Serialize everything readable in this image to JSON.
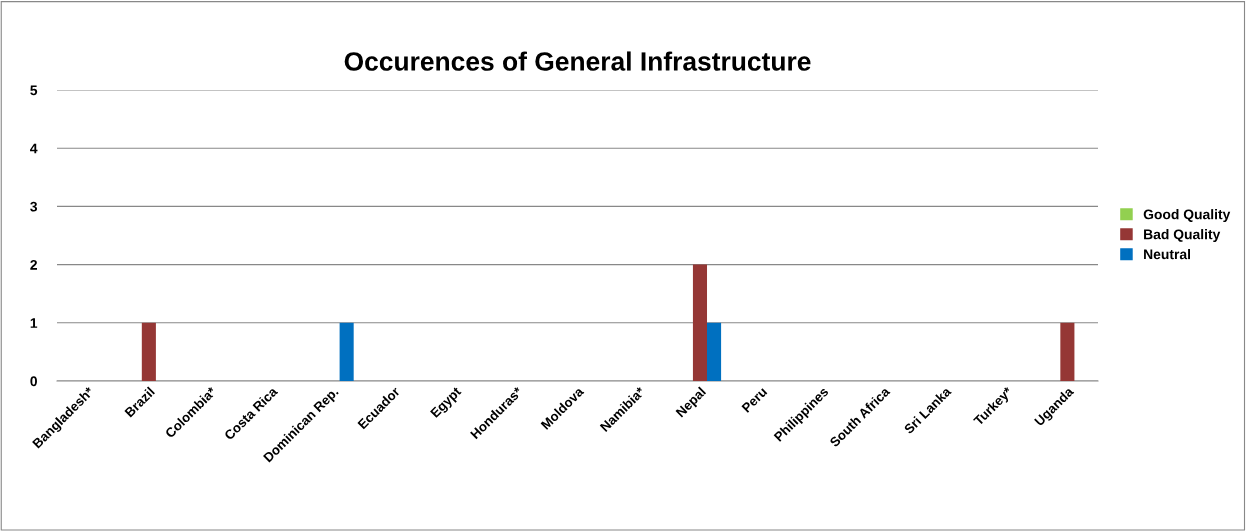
{
  "chart_data": {
    "type": "bar",
    "title": "Occurences of General Infrastructure",
    "categories": [
      "Bangladesh*",
      "Brazil",
      "Colombia*",
      "Costa Rica",
      "Dominican Rep.",
      "Ecuador",
      "Egypt",
      "Honduras*",
      "Moldova",
      "Namibia*",
      "Nepal",
      "Peru",
      "Philippines",
      "South Africa",
      "Sri Lanka",
      "Turkey*",
      "Uganda"
    ],
    "series": [
      {
        "name": "Good Quality",
        "color": "#92d050",
        "values": [
          0,
          0,
          0,
          0,
          0,
          0,
          0,
          0,
          0,
          0,
          0,
          0,
          0,
          0,
          0,
          0,
          0
        ]
      },
      {
        "name": "Bad Quality",
        "color": "#953735",
        "values": [
          0,
          1,
          0,
          0,
          0,
          0,
          0,
          0,
          0,
          0,
          2,
          0,
          0,
          0,
          0,
          0,
          1
        ]
      },
      {
        "name": "Neutral",
        "color": "#0070c0",
        "values": [
          0,
          0,
          0,
          0,
          1,
          0,
          0,
          0,
          0,
          0,
          1,
          0,
          0,
          0,
          0,
          0,
          0
        ]
      }
    ],
    "ylim": [
      0,
      5
    ],
    "yticks": [
      0,
      1,
      2,
      3,
      4,
      5
    ],
    "grid": "y",
    "legend": "right"
  }
}
